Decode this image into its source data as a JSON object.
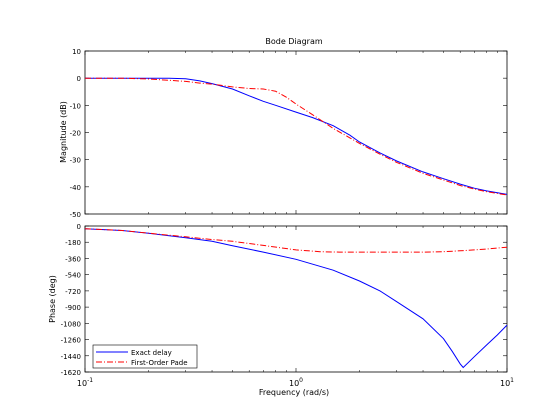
{
  "chart_data": {
    "type": "line",
    "title": "Bode Diagram",
    "xlabel": "Frequency  (rad/s)",
    "x_scale": "log",
    "xlim": [
      0.1,
      10
    ],
    "x_ticks": [
      {
        "value": 0.1,
        "base": "10",
        "exp": "-1"
      },
      {
        "value": 1,
        "base": "10",
        "exp": "0"
      },
      {
        "value": 10,
        "base": "10",
        "exp": "1"
      }
    ],
    "legend": {
      "placement": "bottom-left",
      "panel": "phase"
    },
    "panels": [
      {
        "name": "magnitude",
        "ylabel": "Magnitude (dB)",
        "ylim": [
          -50,
          10
        ],
        "yticks": [
          -50,
          -40,
          -30,
          -20,
          -10,
          0,
          10
        ],
        "series": [
          {
            "name": "Exact delay",
            "color": "#0000ff",
            "style": "solid",
            "x": [
              0.1,
              0.15,
              0.2,
              0.25,
              0.3,
              0.35,
              0.4,
              0.5,
              0.6,
              0.7,
              0.8,
              1.0,
              1.2,
              1.5,
              1.8,
              2.0,
              2.5,
              3,
              4,
              5,
              6,
              7,
              8,
              10
            ],
            "y": [
              0,
              0,
              0,
              0,
              -0.2,
              -1,
              -2,
              -4,
              -6.5,
              -8.5,
              -10,
              -12.5,
              -14.5,
              -17.5,
              -21,
              -23.5,
              -27.5,
              -30.5,
              -34.5,
              -37,
              -39,
              -40.5,
              -41.5,
              -42.8
            ]
          },
          {
            "name": "First-Order Pade",
            "color": "#ff0000",
            "style": "dashdot",
            "x": [
              0.1,
              0.15,
              0.2,
              0.25,
              0.3,
              0.35,
              0.4,
              0.5,
              0.6,
              0.7,
              0.8,
              0.9,
              1.0,
              1.2,
              1.5,
              1.8,
              2.0,
              2.5,
              3,
              4,
              5,
              6,
              7,
              8,
              10
            ],
            "y": [
              0,
              0,
              -0.3,
              -0.8,
              -1.2,
              -1.8,
              -2.2,
              -3.2,
              -3.8,
              -4,
              -4.8,
              -7,
              -9.5,
              -13.5,
              -18.5,
              -22,
              -24,
              -28,
              -31,
              -35,
              -37.5,
              -39.5,
              -40.8,
              -41.8,
              -43
            ]
          }
        ]
      },
      {
        "name": "phase",
        "ylabel": "Phase (deg)",
        "ylim": [
          -1620,
          0
        ],
        "yticks": [
          0,
          -180,
          -360,
          -540,
          -720,
          -900,
          -1080,
          -1260,
          -1440,
          -1620
        ],
        "series": [
          {
            "name": "Exact delay",
            "color": "#0000ff",
            "style": "solid",
            "x": [
              0.1,
              0.15,
              0.2,
              0.3,
              0.4,
              0.5,
              0.7,
              1.0,
              1.5,
              2,
              2.5,
              3,
              4,
              5,
              5.5,
              6,
              6.2,
              7,
              8,
              9,
              10
            ],
            "y": [
              -30,
              -50,
              -80,
              -130,
              -170,
              -220,
              -290,
              -370,
              -490,
              -610,
              -720,
              -840,
              -1030,
              -1250,
              -1390,
              -1530,
              -1570,
              -1450,
              -1320,
              -1210,
              -1100
            ]
          },
          {
            "name": "First-Order Pade",
            "color": "#ff0000",
            "style": "dashdot",
            "x": [
              0.1,
              0.15,
              0.2,
              0.3,
              0.4,
              0.5,
              0.7,
              1.0,
              1.3,
              1.6,
              2,
              3,
              4,
              5,
              6,
              7,
              8,
              10
            ],
            "y": [
              -30,
              -50,
              -80,
              -120,
              -150,
              -170,
              -215,
              -265,
              -285,
              -290,
              -290,
              -290,
              -290,
              -285,
              -275,
              -265,
              -255,
              -235
            ]
          }
        ]
      }
    ]
  }
}
